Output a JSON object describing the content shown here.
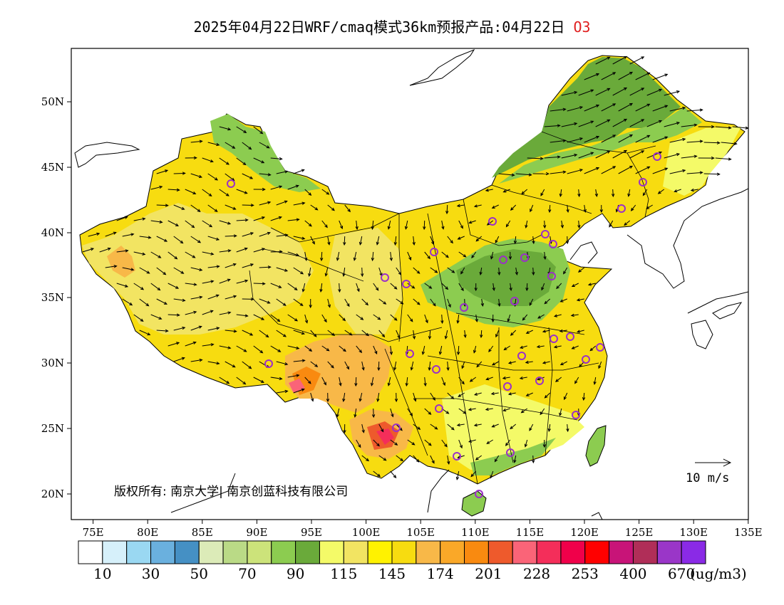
{
  "title": {
    "text": "2025年04月22日WRF/cmaq模式36km预报产品:04月22日",
    "species": "O3",
    "species_color": "#e02020"
  },
  "map": {
    "lon_range": [
      73,
      135
    ],
    "lat_range": [
      18,
      54
    ],
    "lon_ticks": [
      "75E",
      "80E",
      "85E",
      "90E",
      "95E",
      "100E",
      "105E",
      "110E",
      "115E",
      "120E",
      "125E",
      "130E",
      "135E"
    ],
    "lat_ticks": [
      "20N",
      "25N",
      "30N",
      "35N",
      "40N",
      "45N",
      "50N"
    ],
    "copyright": "版权所有: 南京大学| 南京创蓝科技有限公司",
    "wind_reference": "10 m/s",
    "station_marker_color": "#9b30c8"
  },
  "colorbar": {
    "colors": [
      "#ffffff",
      "#d6f0fa",
      "#9ad8f2",
      "#6ab0de",
      "#4590c4",
      "#dcebb8",
      "#bada86",
      "#cce37a",
      "#8ccc50",
      "#6aaa3a",
      "#f4fa68",
      "#f2e462",
      "#fff200",
      "#f7dc10",
      "#f8b848",
      "#faa828",
      "#f98a10",
      "#ee5a2c",
      "#fa6478",
      "#f42e5a",
      "#f0004a",
      "#ff0000",
      "#c81478",
      "#b02e58",
      "#9a36c8",
      "#8a2ae6"
    ],
    "labels": [
      "10",
      "30",
      "50",
      "70",
      "90",
      "115",
      "145",
      "174",
      "201",
      "228",
      "253",
      "400",
      "670"
    ],
    "unit": "(ug/m3)"
  }
}
